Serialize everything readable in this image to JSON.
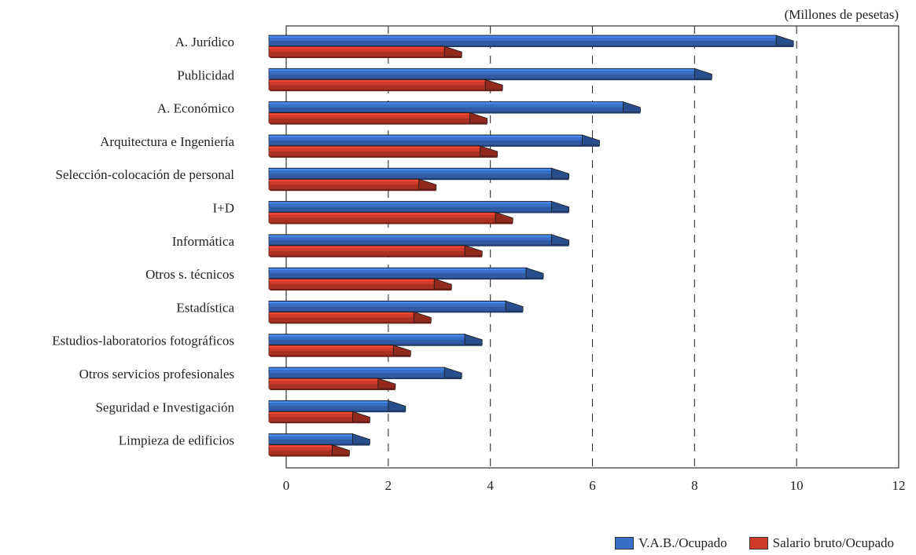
{
  "chart_data": {
    "type": "bar",
    "orientation": "horizontal",
    "unit_label": "(Millones de pesetas)",
    "categories": [
      "A. Jurídico",
      "Publicidad",
      "A. Económico",
      "Arquitectura e Ingeniería",
      "Selección-colocación de personal",
      "I+D",
      "Informática",
      "Otros s. técnicos",
      "Estadística",
      "Estudios-laboratorios fotográficos",
      "Otros servicios profesionales",
      "Seguridad e Investigación",
      "Limpieza de edificios"
    ],
    "series": [
      {
        "name": "V.A.B./Ocupado",
        "color": "#3a6fc8",
        "values": [
          9.6,
          8.0,
          6.6,
          5.8,
          5.2,
          5.2,
          5.2,
          4.7,
          4.3,
          3.5,
          3.1,
          2.0,
          1.3
        ]
      },
      {
        "name": "Salario bruto/Ocupado",
        "color": "#cf3a2a",
        "values": [
          3.1,
          3.9,
          3.6,
          3.8,
          2.6,
          4.1,
          3.5,
          2.9,
          2.5,
          2.1,
          1.8,
          1.3,
          0.9
        ]
      }
    ],
    "xlim": [
      0,
      12
    ],
    "xticks": [
      "0",
      "2",
      "4",
      "6",
      "8",
      "10",
      "12"
    ],
    "grid": "dashed vertical",
    "legend_position": "bottom-right"
  }
}
